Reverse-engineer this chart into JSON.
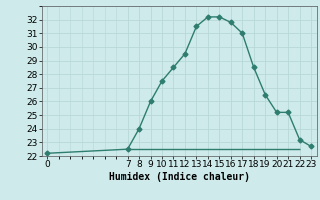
{
  "x": [
    0,
    7,
    8,
    9,
    10,
    11,
    12,
    13,
    14,
    15,
    16,
    17,
    18,
    19,
    20,
    21,
    22,
    23
  ],
  "y": [
    22.2,
    22.5,
    24.0,
    26.0,
    27.5,
    28.5,
    29.5,
    31.5,
    32.2,
    32.2,
    31.8,
    31.0,
    28.5,
    26.5,
    25.2,
    25.2,
    23.2,
    22.7
  ],
  "x_flat_start": 7,
  "x_flat_end": 22,
  "y_flat": 22.5,
  "ylim": [
    22,
    33
  ],
  "xlim": [
    -0.5,
    23.5
  ],
  "yticks": [
    22,
    23,
    24,
    25,
    26,
    27,
    28,
    29,
    30,
    31,
    32
  ],
  "xticks": [
    0,
    7,
    8,
    9,
    10,
    11,
    12,
    13,
    14,
    15,
    16,
    17,
    18,
    19,
    20,
    21,
    22,
    23
  ],
  "xlabel": "Humidex (Indice chaleur)",
  "line_color": "#2e7d6e",
  "bg_color": "#ceeaea",
  "grid_color": "#b8d8d8",
  "marker": "D",
  "marker_size": 2.5,
  "linewidth": 1.0,
  "xlabel_fontsize": 7,
  "tick_fontsize": 6.5
}
